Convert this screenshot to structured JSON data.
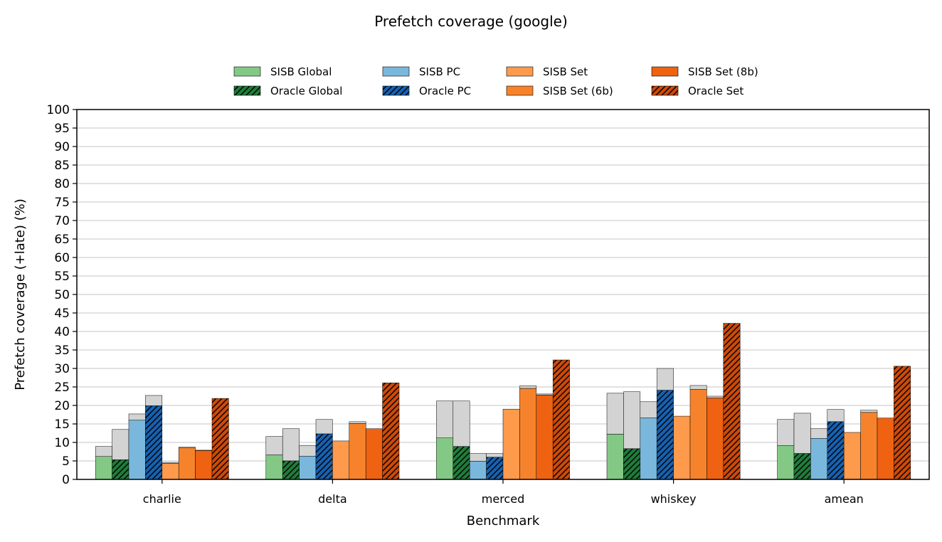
{
  "chart_data": {
    "type": "bar",
    "title": "Prefetch coverage (google)",
    "xlabel": "Benchmark",
    "ylabel": "Prefetch coverage (+late) (%)",
    "ylim": [
      0,
      100
    ],
    "ytick_step": 5,
    "grid": true,
    "legend_placement": "top-center",
    "categories": [
      "charlie",
      "delta",
      "merced",
      "whiskey",
      "amean"
    ],
    "late_color": "#d3d3d3",
    "series": [
      {
        "name": "SISB Global",
        "color": "#83c985",
        "hatch": false,
        "values": [
          6.2,
          6.6,
          11.2,
          12.2,
          9.1
        ],
        "with_late": [
          8.9,
          11.6,
          21.2,
          23.3,
          16.2
        ]
      },
      {
        "name": "Oracle Global",
        "color": "#1f7c3a",
        "hatch": true,
        "values": [
          5.3,
          5.0,
          8.9,
          8.3,
          7.0
        ],
        "with_late": [
          13.5,
          13.7,
          21.2,
          23.7,
          17.9
        ]
      },
      {
        "name": "SISB PC",
        "color": "#7ab7dc",
        "hatch": false,
        "values": [
          16.0,
          6.3,
          4.9,
          16.6,
          11.1
        ],
        "with_late": [
          17.7,
          9.2,
          7.0,
          21.0,
          13.7
        ]
      },
      {
        "name": "Oracle PC",
        "color": "#1661b0",
        "hatch": true,
        "values": [
          19.9,
          12.3,
          6.0,
          24.1,
          15.6
        ],
        "with_late": [
          22.7,
          16.2,
          7.0,
          30.0,
          18.9
        ]
      },
      {
        "name": "SISB Set",
        "color": "#fd9a4c",
        "hatch": false,
        "values": [
          4.3,
          10.4,
          19.0,
          17.1,
          12.7
        ],
        "with_late": [
          4.6,
          10.4,
          19.0,
          17.1,
          12.7
        ]
      },
      {
        "name": "SISB Set (6b)",
        "color": "#f6832b",
        "hatch": false,
        "values": [
          8.5,
          15.1,
          24.6,
          24.3,
          18.1
        ],
        "with_late": [
          8.7,
          15.6,
          25.3,
          25.4,
          18.7
        ]
      },
      {
        "name": "SISB Set (8b)",
        "color": "#ee6211",
        "hatch": false,
        "values": [
          7.8,
          13.7,
          22.8,
          22.0,
          16.6
        ],
        "with_late": [
          7.9,
          13.7,
          23.1,
          22.5,
          16.6
        ]
      },
      {
        "name": "Oracle Set",
        "color": "#cc4a08",
        "hatch": true,
        "values": [
          21.9,
          26.1,
          32.3,
          42.2,
          30.6
        ],
        "with_late": [
          21.9,
          26.1,
          32.3,
          42.2,
          30.6
        ]
      }
    ]
  }
}
